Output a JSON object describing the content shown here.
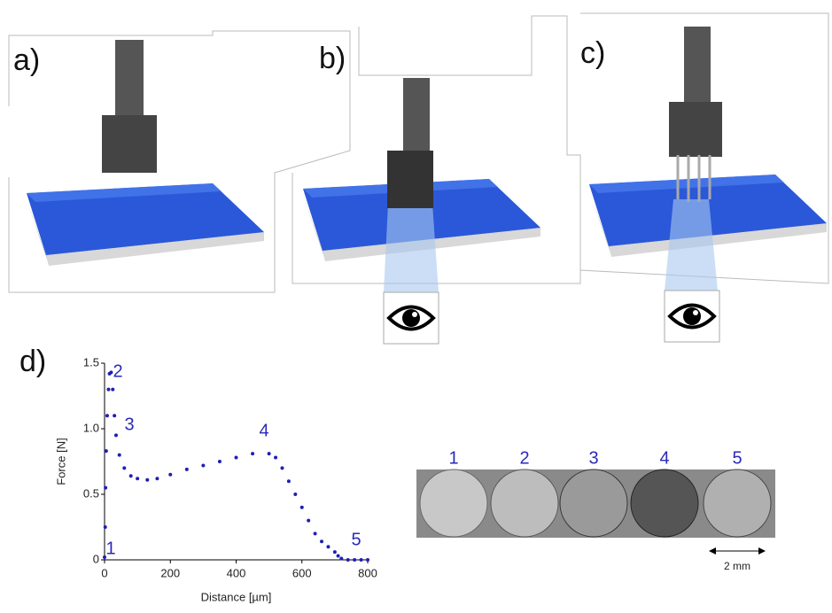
{
  "panels": {
    "a": "a)",
    "b": "b)",
    "c": "c)",
    "d": "d)"
  },
  "chart_data": {
    "type": "scatter",
    "x_label": "Distance [µm]",
    "y_label": "Force [N]",
    "xlim": [
      0,
      800
    ],
    "ylim": [
      0,
      1.5
    ],
    "xticks": [
      0,
      200,
      400,
      600,
      800
    ],
    "yticks": [
      0,
      0.5,
      {
        "value": 1,
        "label": "1.0"
      },
      1.5
    ],
    "annotations": [
      "1",
      "2",
      "3",
      "4",
      "5"
    ],
    "series": [
      {
        "color": "#1f1fb4",
        "x": [
          0,
          2,
          3,
          5,
          8,
          12,
          15,
          20,
          25,
          30,
          35,
          45,
          60,
          80,
          100,
          130,
          160,
          200,
          250,
          300,
          350,
          400,
          450,
          500,
          520,
          540,
          560,
          580,
          600,
          620,
          640,
          660,
          680,
          700,
          710,
          720,
          740,
          760,
          780,
          800
        ],
        "values": [
          0.02,
          0.25,
          0.55,
          0.83,
          1.1,
          1.3,
          1.42,
          1.43,
          1.3,
          1.1,
          0.95,
          0.8,
          0.7,
          0.64,
          0.62,
          0.61,
          0.62,
          0.65,
          0.69,
          0.72,
          0.75,
          0.78,
          0.81,
          0.81,
          0.78,
          0.7,
          0.6,
          0.5,
          0.4,
          0.3,
          0.2,
          0.14,
          0.1,
          0.06,
          0.03,
          0.01,
          0,
          0,
          0,
          0
        ]
      }
    ]
  },
  "inset": {
    "labels": [
      "1",
      "2",
      "3",
      "4",
      "5"
    ],
    "scale": "2 mm"
  }
}
